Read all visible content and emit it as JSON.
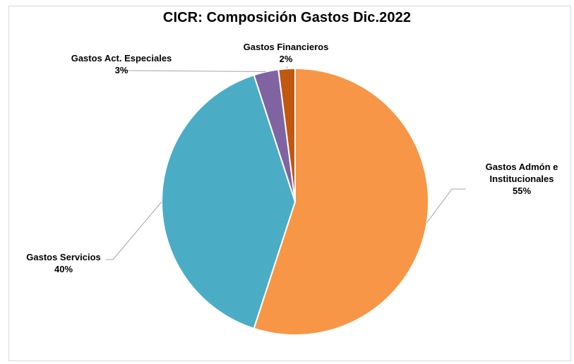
{
  "chart_data": {
    "type": "pie",
    "title": "CICR: Composición Gastos Dic.2022",
    "slices": [
      {
        "label": "Gastos Admón e Institucionales",
        "label_lines": [
          "Gastos Admón e",
          "Institucionales"
        ],
        "value": 55,
        "percent_label": "55%",
        "color": "#F79646"
      },
      {
        "label": "Gastos Servicios",
        "label_lines": [
          "Gastos Servicios"
        ],
        "value": 40,
        "percent_label": "40%",
        "color": "#4BACC6"
      },
      {
        "label": "Gastos Act. Especiales",
        "label_lines": [
          "Gastos Act. Especiales"
        ],
        "value": 3,
        "percent_label": "3%",
        "color": "#8064A2"
      },
      {
        "label": "Gastos Financieros",
        "label_lines": [
          "Gastos Financieros"
        ],
        "value": 2,
        "percent_label": "2%",
        "color": "#C0580F"
      }
    ]
  }
}
